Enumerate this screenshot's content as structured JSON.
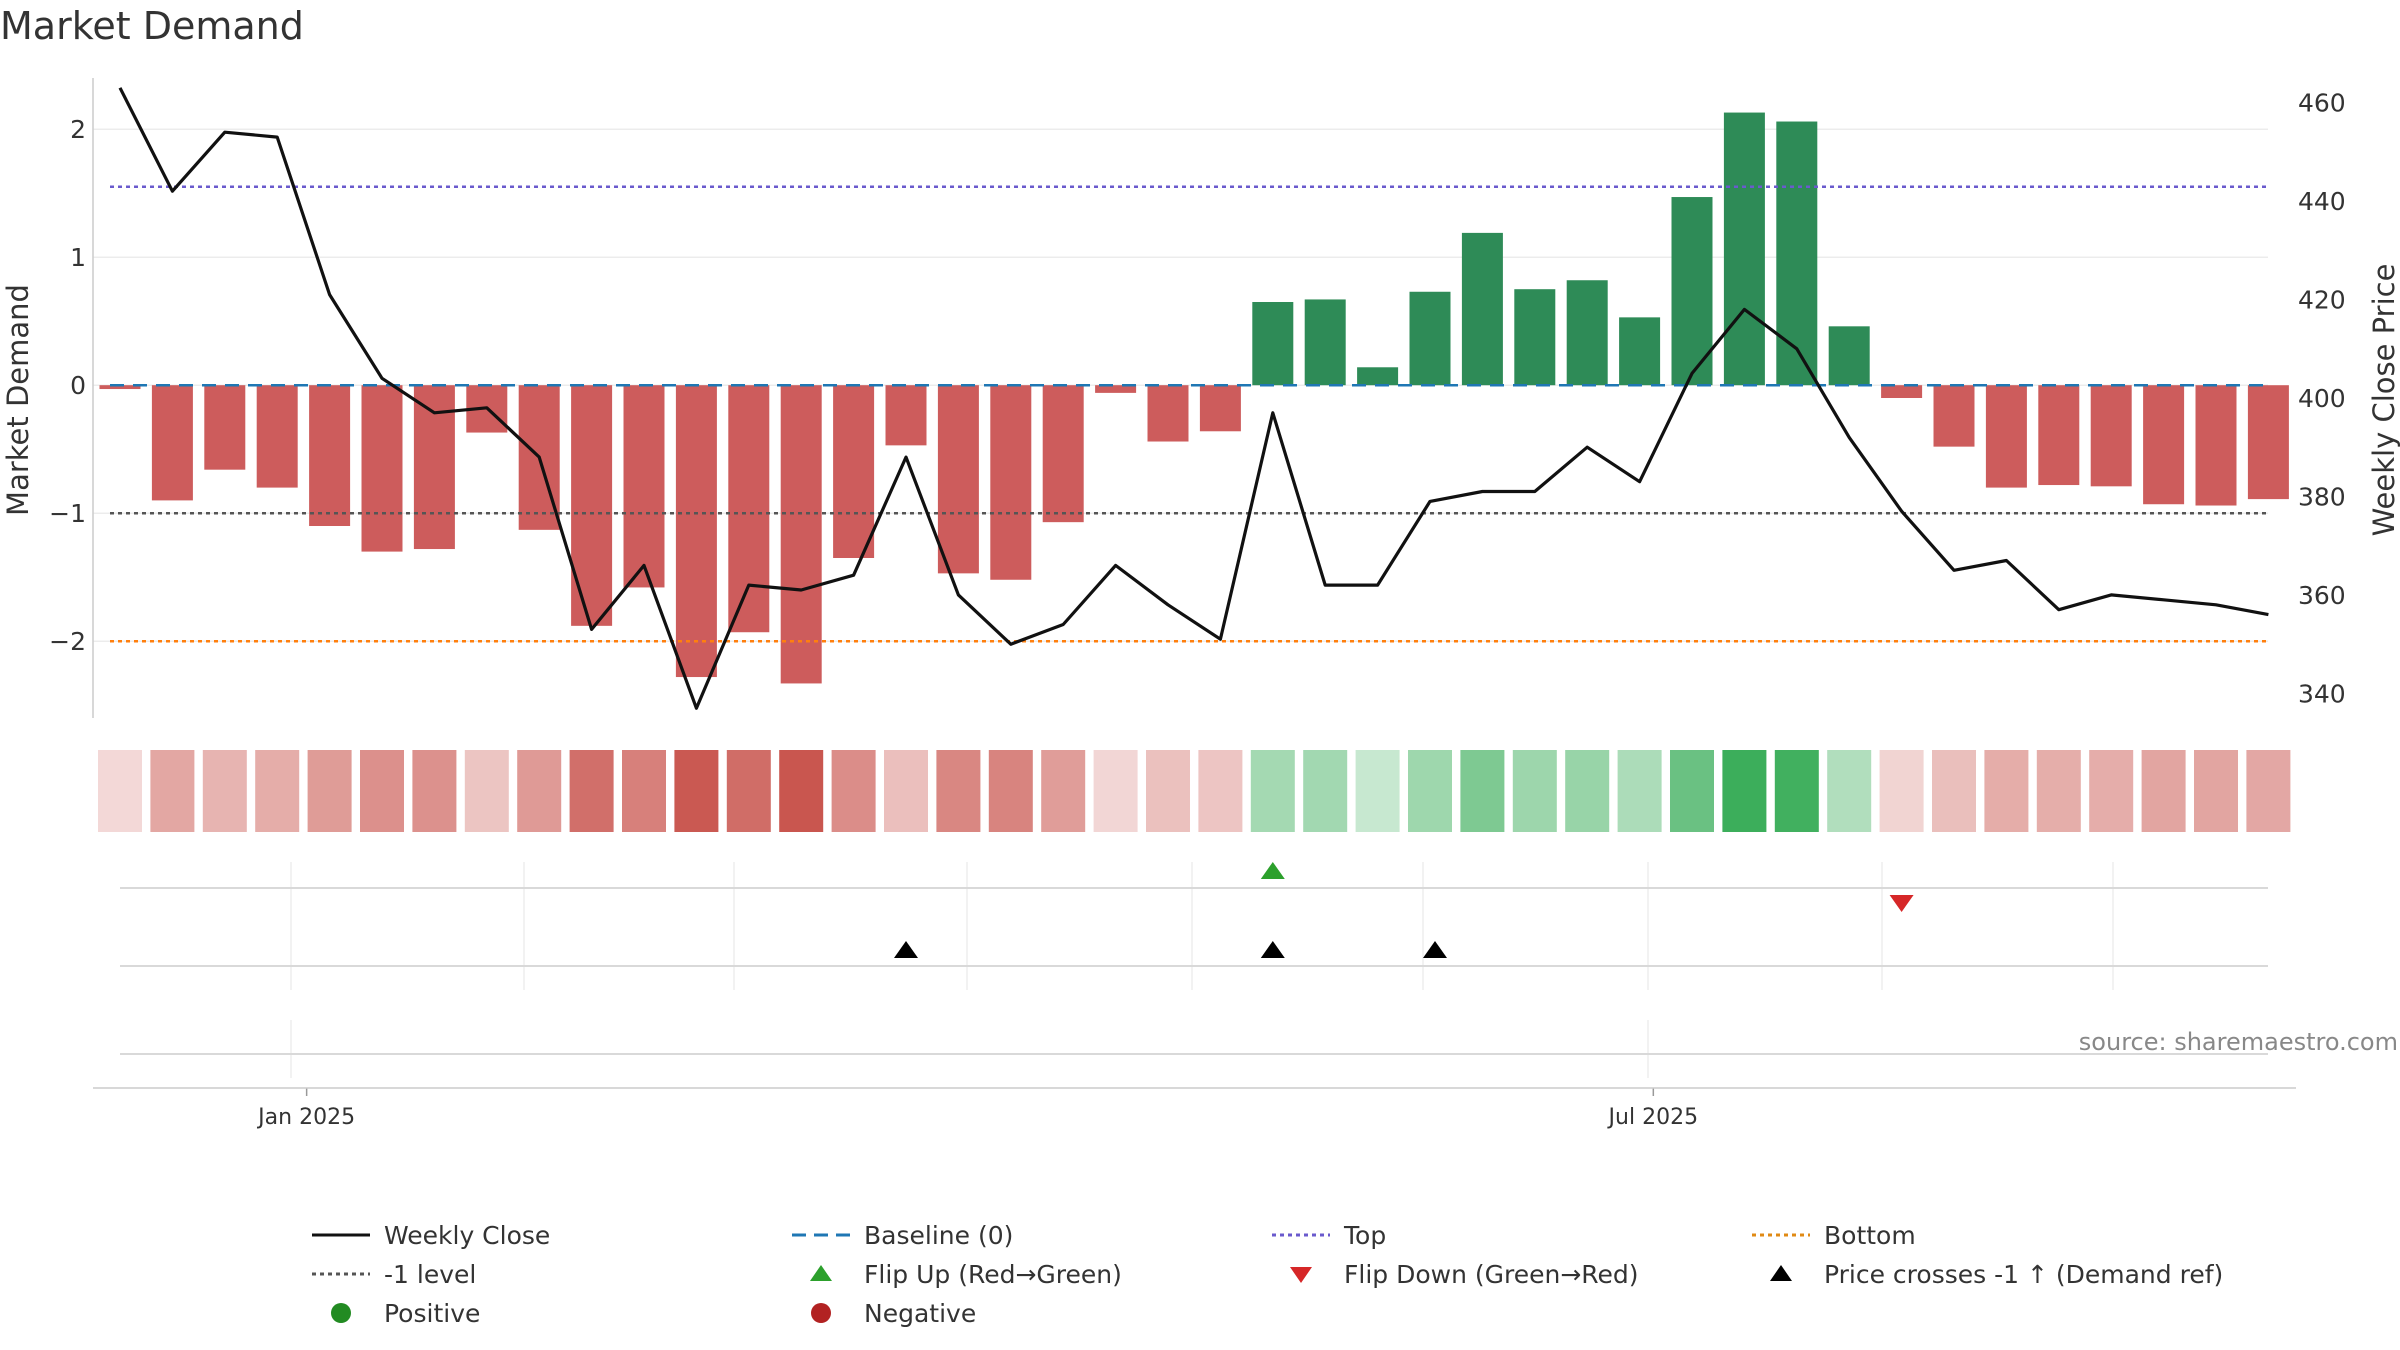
{
  "title": "Market Demand",
  "source": "source: sharemaestro.com",
  "colors": {
    "positive_bar": "#2e8b57",
    "negative_bar": "#cd5c5c",
    "price_line": "#111111",
    "baseline": "#1f77b4",
    "top": "#6a5acd",
    "bottom": "#ff7f0e",
    "minus_one": "#555555",
    "flip_up": "#2ca02c",
    "flip_down": "#d62728",
    "cross": "#000000",
    "positive_dot": "#228b22",
    "negative_dot": "#b22222"
  },
  "chart_data": {
    "type": "bar",
    "title": "Market Demand",
    "ylabel": "Market Demand",
    "y2label": "Weekly Close Price",
    "ylim": [
      -2.6,
      2.4
    ],
    "y2lim": [
      335,
      465
    ],
    "yticks": [
      2,
      1,
      0,
      -1,
      -2
    ],
    "ytick_labels": [
      "2",
      "1",
      "0",
      "−1",
      "−2"
    ],
    "y2ticks": [
      460,
      440,
      420,
      400,
      380,
      360,
      340
    ],
    "xticks": [
      {
        "index": 3.6,
        "label": "Jan 2025"
      },
      {
        "index": 29.3,
        "label": "Jul 2025"
      }
    ],
    "levels": {
      "baseline": 0,
      "top": 1.55,
      "minus_one": -1,
      "bottom": -2
    },
    "series": [
      {
        "name": "Market Demand",
        "values": [
          -0.03,
          -0.9,
          -0.66,
          -0.8,
          -1.1,
          -1.3,
          -1.28,
          -0.37,
          -1.13,
          -1.88,
          -1.58,
          -2.28,
          -1.93,
          -2.33,
          -1.35,
          -0.47,
          -1.47,
          -1.52,
          -1.07,
          -0.06,
          -0.44,
          -0.36,
          0.65,
          0.67,
          0.14,
          0.73,
          1.19,
          0.75,
          0.82,
          0.53,
          1.47,
          2.13,
          2.06,
          0.46,
          -0.1,
          -0.48,
          -0.8,
          -0.78,
          -0.79,
          -0.93,
          -0.94,
          -0.89
        ]
      },
      {
        "name": "Weekly Close",
        "values": [
          463,
          442,
          454,
          453,
          421,
          404,
          397,
          398,
          388,
          353,
          366,
          337,
          362,
          361,
          364,
          388,
          360,
          350,
          354,
          366,
          358,
          351,
          397,
          362,
          362,
          379,
          381,
          381,
          390,
          383,
          405,
          418,
          410,
          392,
          377,
          365,
          367,
          357,
          360,
          359,
          358,
          356
        ]
      }
    ],
    "events": {
      "flip_up": [
        22
      ],
      "flip_down": [
        34
      ],
      "price_crosses": [
        15,
        22,
        25
      ]
    }
  },
  "legend": {
    "weekly_close": "Weekly Close",
    "baseline": "Baseline (0)",
    "top": "Top",
    "bottom": "Bottom",
    "minus_one": "-1 level",
    "flip_up": "Flip Up (Red→Green)",
    "flip_down": "Flip Down (Green→Red)",
    "price_crosses": "Price crosses -1 ↑ (Demand ref)",
    "positive": "Positive",
    "negative": "Negative"
  }
}
